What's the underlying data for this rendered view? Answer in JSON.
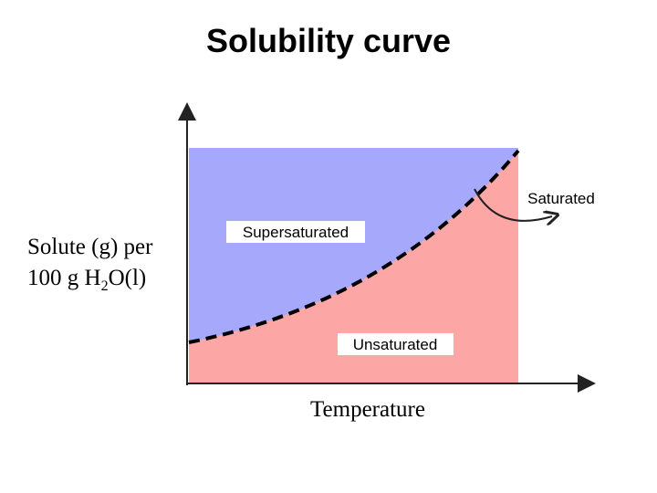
{
  "title": "Solubility curve",
  "regions": {
    "supersaturated": "Supersaturated",
    "unsaturated": "Unsaturated",
    "saturated": "Saturated"
  },
  "x_label": "Temperature",
  "y_label": {
    "line1": "Solute (g) per",
    "line2": [
      "100 g H",
      "2",
      "O(l)"
    ]
  }
}
